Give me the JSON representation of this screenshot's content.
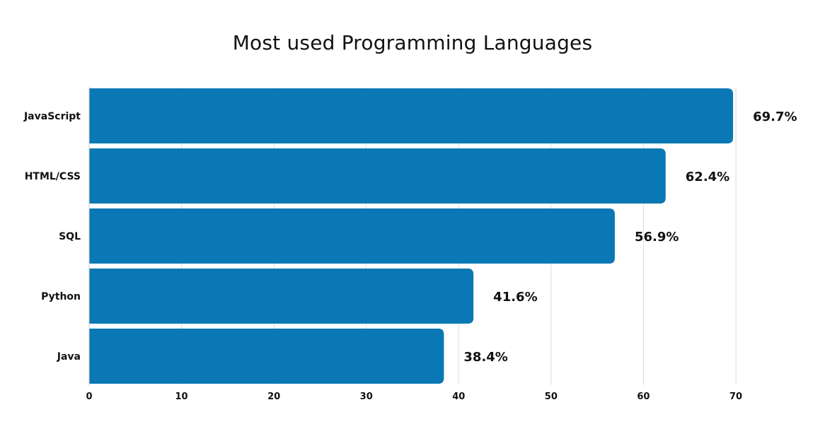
{
  "chart_data": {
    "type": "bar",
    "orientation": "horizontal",
    "title": "Most used Programming Languages",
    "categories": [
      "JavaScript",
      "HTML/CSS",
      "SQL",
      "Python",
      "Java"
    ],
    "values": [
      69.7,
      62.4,
      56.9,
      41.6,
      38.4
    ],
    "data_labels": [
      "69.7%",
      "62.4%",
      "56.9%",
      "41.6%",
      "38.4%"
    ],
    "x_ticks": [
      0,
      10,
      20,
      30,
      40,
      50,
      60,
      70
    ],
    "xlim": [
      0,
      70
    ],
    "xlabel": "",
    "ylabel": "",
    "grid": true,
    "legend": "none",
    "bar_color": "#0a78b4",
    "grid_color": "#dddddd"
  }
}
